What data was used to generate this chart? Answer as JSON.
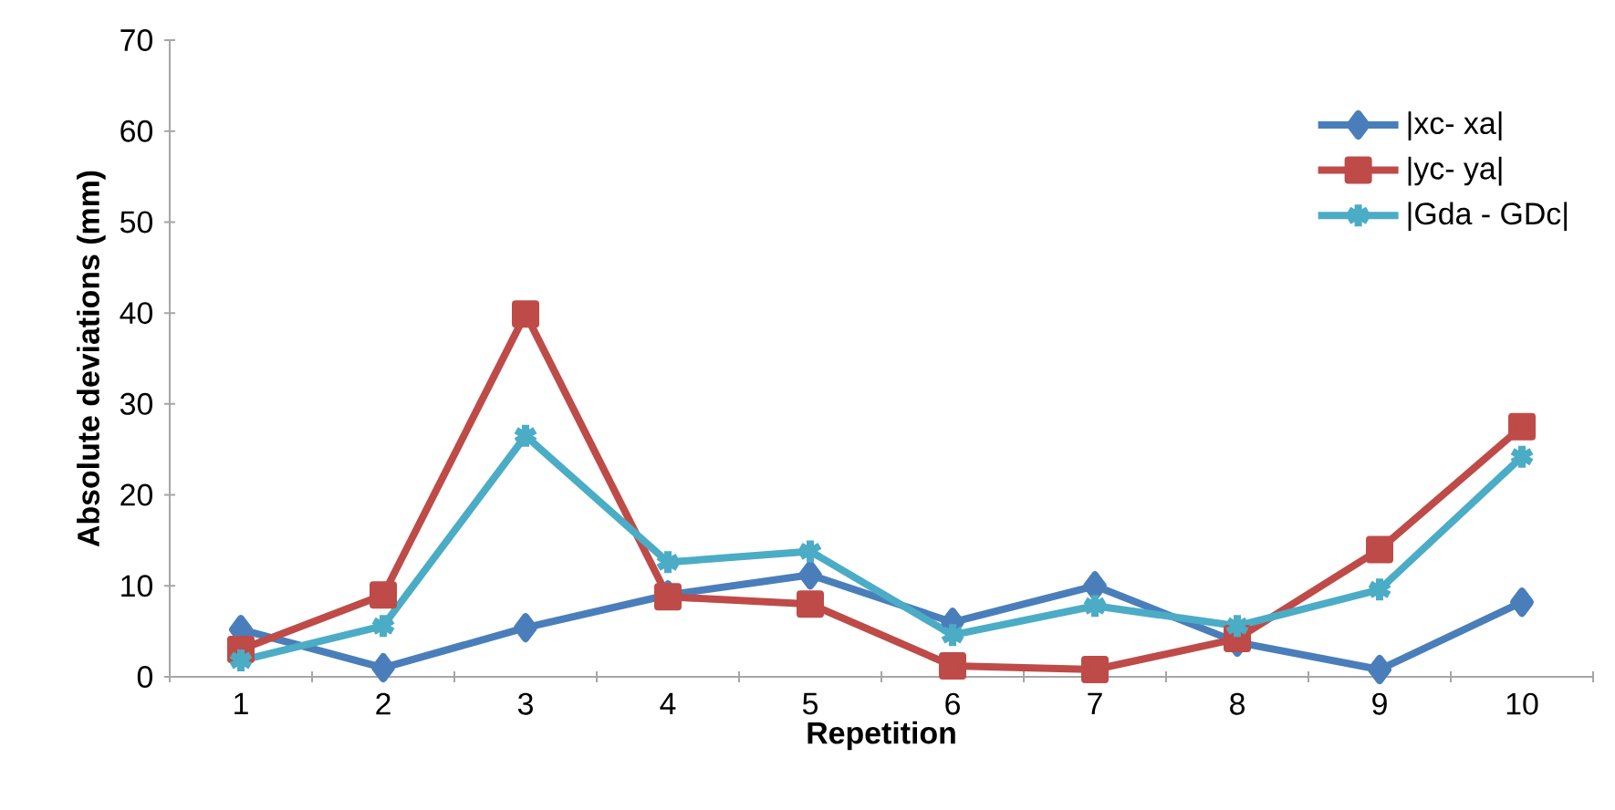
{
  "chart_data": {
    "type": "line",
    "xlabel": "Repetition",
    "ylabel": "Absolute deviations (mm)",
    "categories": [
      "1",
      "2",
      "3",
      "4",
      "5",
      "6",
      "7",
      "8",
      "9",
      "10"
    ],
    "series": [
      {
        "name": "|xc- xa|",
        "color": "#4a7ebb",
        "marker": "diamond",
        "values": [
          5.2,
          1.0,
          5.4,
          9.0,
          11.2,
          6.0,
          10.0,
          3.8,
          0.8,
          8.2
        ]
      },
      {
        "name": "|yc- ya|",
        "color": "#be4b48",
        "marker": "square",
        "values": [
          3.0,
          9.0,
          39.9,
          8.8,
          8.0,
          1.2,
          0.8,
          4.2,
          14.0,
          27.5
        ]
      },
      {
        "name": "|Gda - GDc|",
        "color": "#4bacc6",
        "marker": "cross",
        "values": [
          1.8,
          5.6,
          26.5,
          12.6,
          13.8,
          4.6,
          7.8,
          5.6,
          9.6,
          24.2
        ]
      }
    ],
    "ylim": [
      0,
      70
    ],
    "yticks": [
      0,
      10,
      20,
      30,
      40,
      50,
      60,
      70
    ],
    "grid": false,
    "legend": "right",
    "line_style": "solid"
  }
}
